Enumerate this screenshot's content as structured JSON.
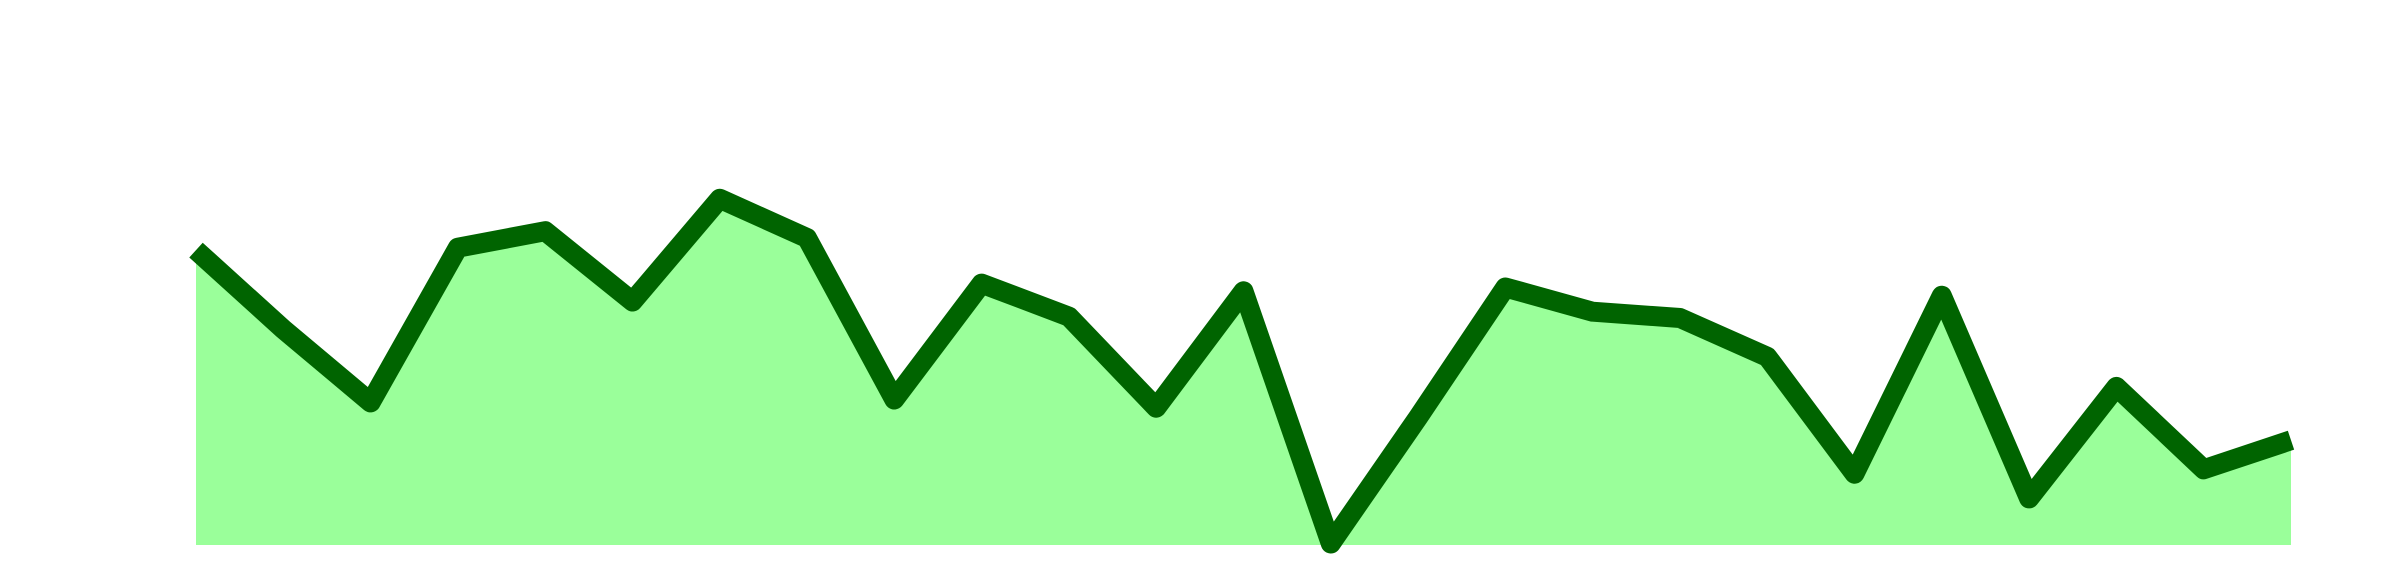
{
  "chart_data": {
    "type": "area",
    "title": "",
    "xlabel": "",
    "ylabel": "",
    "grid": false,
    "legend": "none",
    "ylim": [
      0,
      100
    ],
    "x": [
      1,
      2,
      3,
      4,
      5,
      6,
      7,
      8,
      9,
      10,
      11,
      12,
      13,
      14,
      15,
      16,
      17,
      18,
      19,
      20,
      21,
      22,
      23,
      24,
      25
    ],
    "series": [
      {
        "values": [
          60.8,
          44.5,
          29.4,
          61.3,
          64.7,
          50.2,
          71.4,
          63.3,
          30.0,
          53.9,
          47.1,
          28.3,
          52.3,
          0.3,
          26.3,
          53.1,
          48.1,
          46.8,
          38.8,
          14.7,
          51.4,
          9.6,
          32.6,
          15.6,
          21.6
        ],
        "line_color": "#006400",
        "fill_color": "#9aff9a"
      }
    ]
  }
}
